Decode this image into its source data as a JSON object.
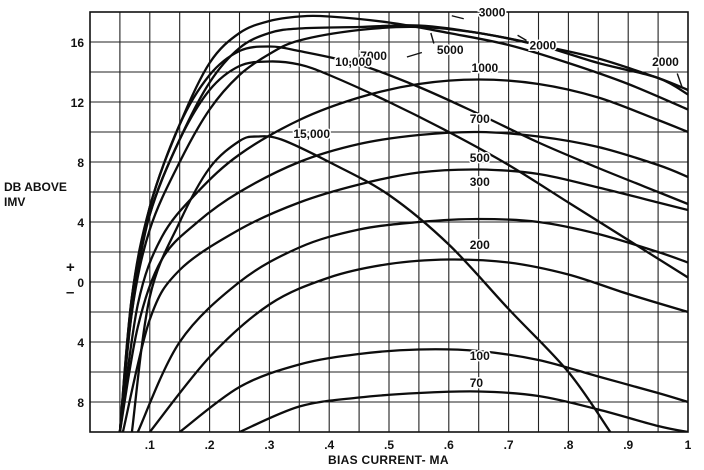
{
  "chart_data": {
    "type": "line",
    "xlabel": "BIAS CURRENT- MA",
    "ylabel_lines": [
      "DB ABOVE",
      "IMV"
    ],
    "sign_plus": "+",
    "sign_minus": "–",
    "xlim": [
      0,
      1
    ],
    "ylim": [
      -10,
      18
    ],
    "grid": true,
    "x_ticks": [
      {
        "value": 0.1,
        "label": ".1"
      },
      {
        "value": 0.2,
        "label": ".2"
      },
      {
        "value": 0.3,
        "label": ".3"
      },
      {
        "value": 0.4,
        "label": ".4"
      },
      {
        "value": 0.5,
        "label": ".5"
      },
      {
        "value": 0.6,
        "label": ".6"
      },
      {
        "value": 0.7,
        "label": ".7"
      },
      {
        "value": 0.8,
        "label": ".8"
      },
      {
        "value": 0.9,
        "label": ".9"
      },
      {
        "value": 1.0,
        "label": "1"
      }
    ],
    "y_ticks": [
      {
        "value": 16,
        "label": "16"
      },
      {
        "value": 12,
        "label": "12"
      },
      {
        "value": 8,
        "label": "8"
      },
      {
        "value": 4,
        "label": "4"
      },
      {
        "value": 0,
        "label": "0"
      },
      {
        "value": -4,
        "label": "4"
      },
      {
        "value": -8,
        "label": "8"
      }
    ],
    "series": [
      {
        "name": "70",
        "label_at": [
          0.635,
          -7.0
        ],
        "points": [
          [
            0.25,
            -10
          ],
          [
            0.35,
            -8.3
          ],
          [
            0.45,
            -7.7
          ],
          [
            0.55,
            -7.4
          ],
          [
            0.65,
            -7.3
          ],
          [
            0.75,
            -7.6
          ],
          [
            0.85,
            -8.5
          ],
          [
            0.95,
            -9.6
          ],
          [
            1.0,
            -10
          ]
        ]
      },
      {
        "name": "100",
        "label_at": [
          0.635,
          -5.2
        ],
        "points": [
          [
            0.15,
            -10
          ],
          [
            0.25,
            -7.0
          ],
          [
            0.35,
            -5.5
          ],
          [
            0.45,
            -4.8
          ],
          [
            0.55,
            -4.5
          ],
          [
            0.65,
            -4.6
          ],
          [
            0.75,
            -5.2
          ],
          [
            0.85,
            -6.3
          ],
          [
            0.95,
            -7.4
          ],
          [
            1.0,
            -8.0
          ]
        ]
      },
      {
        "name": "200",
        "label_at": [
          0.635,
          2.2
        ],
        "points": [
          [
            0.1,
            -10
          ],
          [
            0.2,
            -5.0
          ],
          [
            0.3,
            -1.5
          ],
          [
            0.4,
            0.3
          ],
          [
            0.5,
            1.2
          ],
          [
            0.6,
            1.5
          ],
          [
            0.7,
            1.3
          ],
          [
            0.8,
            0.5
          ],
          [
            0.9,
            -0.8
          ],
          [
            1.0,
            -2.0
          ]
        ]
      },
      {
        "name": "300",
        "label_at": [
          0.635,
          6.4
        ],
        "points": [
          [
            0.08,
            -10
          ],
          [
            0.15,
            -4.0
          ],
          [
            0.25,
            0.0
          ],
          [
            0.35,
            2.3
          ],
          [
            0.45,
            3.5
          ],
          [
            0.55,
            4.0
          ],
          [
            0.65,
            4.2
          ],
          [
            0.75,
            4.0
          ],
          [
            0.85,
            3.2
          ],
          [
            0.95,
            2.0
          ],
          [
            1.0,
            1.3
          ]
        ]
      },
      {
        "name": "500",
        "label_at": [
          0.635,
          8.0
        ],
        "points": [
          [
            0.055,
            -10
          ],
          [
            0.1,
            -2.5
          ],
          [
            0.15,
            0.8
          ],
          [
            0.25,
            3.5
          ],
          [
            0.35,
            5.3
          ],
          [
            0.45,
            6.5
          ],
          [
            0.55,
            7.3
          ],
          [
            0.65,
            7.5
          ],
          [
            0.75,
            7.2
          ],
          [
            0.85,
            6.3
          ],
          [
            0.95,
            5.3
          ],
          [
            1.0,
            4.8
          ]
        ]
      },
      {
        "name": "700",
        "label_at": [
          0.635,
          10.6
        ],
        "points": [
          [
            0.05,
            -10
          ],
          [
            0.08,
            -3.0
          ],
          [
            0.12,
            1.5
          ],
          [
            0.18,
            4.0
          ],
          [
            0.25,
            6.0
          ],
          [
            0.35,
            8.0
          ],
          [
            0.45,
            9.2
          ],
          [
            0.55,
            9.8
          ],
          [
            0.65,
            10.0
          ],
          [
            0.75,
            9.7
          ],
          [
            0.85,
            9.0
          ],
          [
            0.95,
            7.8
          ],
          [
            1.0,
            7.0
          ]
        ]
      },
      {
        "name": "1000",
        "label_at": [
          0.638,
          14.0
        ],
        "points": [
          [
            0.05,
            -10
          ],
          [
            0.08,
            -1.5
          ],
          [
            0.12,
            3.0
          ],
          [
            0.18,
            6.0
          ],
          [
            0.25,
            8.5
          ],
          [
            0.35,
            10.8
          ],
          [
            0.45,
            12.3
          ],
          [
            0.55,
            13.2
          ],
          [
            0.65,
            13.5
          ],
          [
            0.75,
            13.2
          ],
          [
            0.85,
            12.3
          ],
          [
            0.95,
            10.8
          ],
          [
            1.0,
            10.0
          ]
        ]
      },
      {
        "name": "2000",
        "label_at": [
          0.735,
          15.5
        ],
        "points": [
          [
            0.05,
            -10
          ],
          [
            0.07,
            -2.0
          ],
          [
            0.1,
            3.5
          ],
          [
            0.15,
            8.0
          ],
          [
            0.2,
            11.5
          ],
          [
            0.25,
            13.8
          ],
          [
            0.3,
            15.2
          ],
          [
            0.35,
            16.1
          ],
          [
            0.45,
            16.8
          ],
          [
            0.55,
            17.0
          ],
          [
            0.65,
            16.6
          ],
          [
            0.75,
            15.8
          ],
          [
            0.85,
            14.9
          ],
          [
            0.95,
            13.6
          ],
          [
            1.0,
            12.8
          ]
        ]
      },
      {
        "name": "3000",
        "label_at": [
          0.65,
          17.7
        ],
        "points": [
          [
            0.05,
            -10
          ],
          [
            0.07,
            -2.0
          ],
          [
            0.1,
            4.5
          ],
          [
            0.15,
            9.5
          ],
          [
            0.2,
            13.3
          ],
          [
            0.25,
            15.6
          ],
          [
            0.3,
            16.6
          ],
          [
            0.35,
            16.9
          ],
          [
            0.45,
            17.0
          ],
          [
            0.55,
            17.1
          ],
          [
            0.65,
            16.6
          ],
          [
            0.75,
            15.8
          ],
          [
            0.85,
            14.6
          ],
          [
            0.95,
            13.6
          ],
          [
            1.0,
            12.5
          ]
        ]
      },
      {
        "name": "5000",
        "label_at": [
          0.58,
          15.2
        ],
        "points": [
          [
            0.05,
            -10
          ],
          [
            0.07,
            -1.5
          ],
          [
            0.1,
            5.0
          ],
          [
            0.15,
            10.5
          ],
          [
            0.2,
            14.6
          ],
          [
            0.25,
            16.6
          ],
          [
            0.3,
            17.4
          ],
          [
            0.35,
            17.7
          ],
          [
            0.4,
            17.7
          ],
          [
            0.5,
            17.3
          ],
          [
            0.6,
            16.6
          ],
          [
            0.7,
            15.8
          ],
          [
            0.8,
            14.6
          ],
          [
            0.9,
            13.2
          ],
          [
            1.0,
            11.5
          ]
        ]
      },
      {
        "name": "7000",
        "label_at": [
          0.452,
          14.8
        ],
        "points": [
          [
            0.05,
            -10
          ],
          [
            0.07,
            -1.0
          ],
          [
            0.1,
            5.0
          ],
          [
            0.15,
            10.5
          ],
          [
            0.2,
            13.8
          ],
          [
            0.25,
            15.4
          ],
          [
            0.3,
            15.7
          ],
          [
            0.35,
            15.4
          ],
          [
            0.45,
            14.5
          ],
          [
            0.55,
            13.0
          ],
          [
            0.65,
            11.2
          ],
          [
            0.75,
            9.3
          ],
          [
            0.85,
            7.6
          ],
          [
            0.95,
            6.0
          ],
          [
            1.0,
            5.2
          ]
        ]
      },
      {
        "name": "10,000",
        "label_at": [
          0.41,
          14.4
        ],
        "points": [
          [
            0.05,
            -10
          ],
          [
            0.07,
            -1.0
          ],
          [
            0.1,
            4.5
          ],
          [
            0.15,
            9.5
          ],
          [
            0.2,
            12.8
          ],
          [
            0.25,
            14.4
          ],
          [
            0.3,
            14.7
          ],
          [
            0.35,
            14.5
          ],
          [
            0.4,
            13.8
          ],
          [
            0.5,
            12.0
          ],
          [
            0.6,
            10.0
          ],
          [
            0.7,
            7.8
          ],
          [
            0.8,
            5.3
          ],
          [
            0.9,
            2.8
          ],
          [
            1.0,
            0.3
          ]
        ]
      },
      {
        "name": "15,000",
        "label_at": [
          0.34,
          9.6
        ],
        "points": [
          [
            0.07,
            -10
          ],
          [
            0.1,
            -1.0
          ],
          [
            0.15,
            4.0
          ],
          [
            0.2,
            7.6
          ],
          [
            0.25,
            9.4
          ],
          [
            0.28,
            9.7
          ],
          [
            0.32,
            9.5
          ],
          [
            0.4,
            8.0
          ],
          [
            0.5,
            5.8
          ],
          [
            0.6,
            2.5
          ],
          [
            0.7,
            -1.8
          ],
          [
            0.8,
            -6.0
          ],
          [
            0.87,
            -10
          ]
        ]
      }
    ],
    "annotations": [
      {
        "text": "2000",
        "label_at": [
          0.94,
          14.4
        ]
      }
    ]
  }
}
